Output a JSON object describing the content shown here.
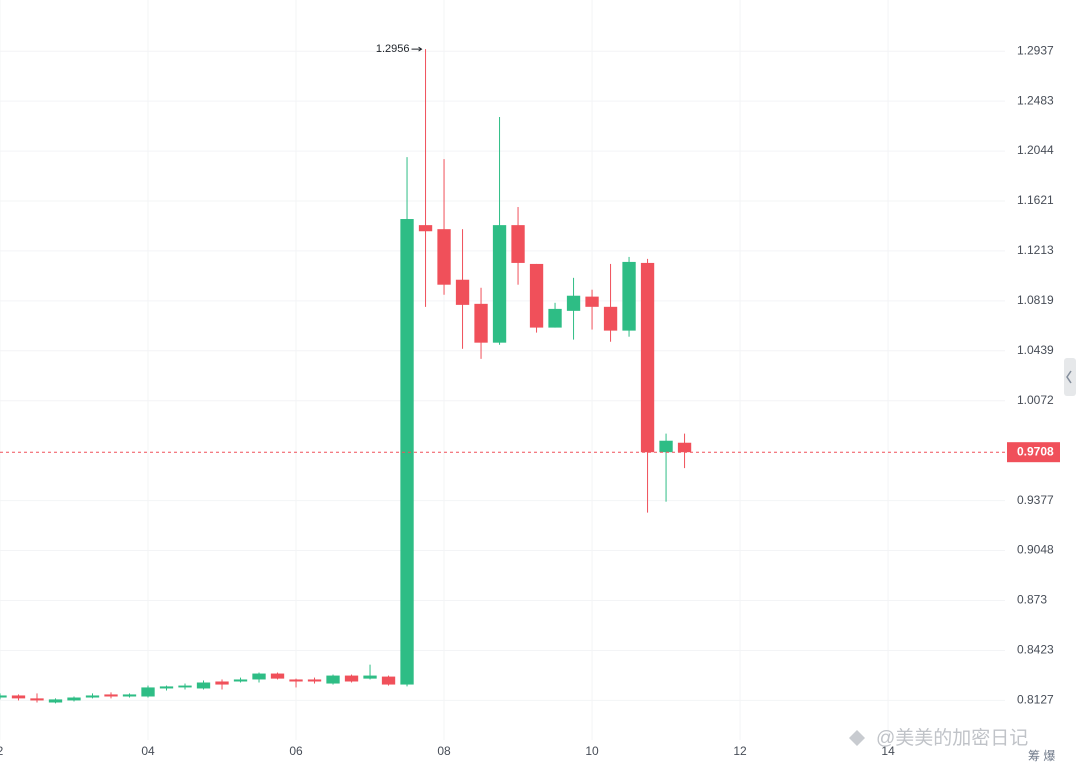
{
  "chart_data": {
    "type": "candlestick",
    "log_scale": true,
    "grid": true,
    "up_color": "#2ebd85",
    "down_color": "#f0505a",
    "x": [
      2,
      2.25,
      2.5,
      2.75,
      3,
      3.25,
      3.5,
      3.75,
      4,
      4.25,
      4.5,
      4.75,
      5,
      5.25,
      5.5,
      5.75,
      6,
      6.25,
      6.5,
      6.75,
      7,
      7.25,
      7.5,
      7.75,
      8,
      8.25,
      8.5,
      8.75,
      9,
      9.25,
      9.5,
      9.75,
      10,
      10.25,
      10.5,
      10.75,
      11,
      11.25
    ],
    "open": [
      0.8144,
      0.8156,
      0.8139,
      0.8115,
      0.8127,
      0.8144,
      0.8162,
      0.815,
      0.815,
      0.8197,
      0.8203,
      0.8197,
      0.8238,
      0.8238,
      0.825,
      0.8285,
      0.825,
      0.825,
      0.8226,
      0.8273,
      0.8255,
      0.8267,
      0.822,
      1.1422,
      1.1389,
      1.0984,
      1.0796,
      1.05,
      1.1422,
      1.1109,
      1.0614,
      1.0742,
      1.0852,
      1.0773,
      1.0591,
      1.1117,
      0.9708,
      0.9774
    ],
    "high": [
      0.8168,
      0.8162,
      0.8168,
      0.8139,
      0.815,
      0.8168,
      0.8174,
      0.8168,
      0.8214,
      0.8214,
      0.8226,
      0.8244,
      0.825,
      0.8261,
      0.8291,
      0.8291,
      0.8255,
      0.8261,
      0.8279,
      0.8279,
      0.8338,
      0.8273,
      1.1992,
      1.2956,
      1.1975,
      1.1389,
      1.0921,
      1.2341,
      1.1571,
      1.1109,
      1.0804,
      1.0999,
      1.0906,
      1.1109,
      1.1165,
      1.1149,
      0.9838,
      0.9838
    ],
    "low": [
      0.8133,
      0.8127,
      0.8115,
      0.811,
      0.8121,
      0.8139,
      0.8139,
      0.8144,
      0.8144,
      0.8185,
      0.8191,
      0.8191,
      0.8191,
      0.8232,
      0.8232,
      0.825,
      0.8203,
      0.8226,
      0.822,
      0.8232,
      0.825,
      0.8214,
      0.8209,
      1.0773,
      1.0867,
      1.0454,
      1.0379,
      1.0484,
      1.0945,
      1.0576,
      1.0614,
      1.0523,
      1.0599,
      1.0507,
      1.0545,
      0.9297,
      0.937,
      0.9598
    ],
    "close": [
      0.8156,
      0.8139,
      0.8127,
      0.8133,
      0.8144,
      0.8156,
      0.815,
      0.8162,
      0.8203,
      0.8209,
      0.8214,
      0.8232,
      0.822,
      0.825,
      0.8285,
      0.8255,
      0.8238,
      0.8238,
      0.8273,
      0.8238,
      0.8273,
      0.822,
      1.1472,
      1.1372,
      1.0945,
      1.0788,
      1.05,
      1.1422,
      1.1117,
      1.0614,
      1.0757,
      1.0859,
      1.0773,
      1.0591,
      1.1125,
      0.9708,
      0.9788,
      0.9708
    ],
    "xlim": [
      2,
      15.58
    ],
    "xticks": [
      {
        "value": 2,
        "label": "2"
      },
      {
        "value": 4,
        "label": "04"
      },
      {
        "value": 6,
        "label": "06"
      },
      {
        "value": 8,
        "label": "08"
      },
      {
        "value": 10,
        "label": "10"
      },
      {
        "value": 12,
        "label": "12"
      },
      {
        "value": 14,
        "label": "14"
      }
    ],
    "ylim": [
      0.79,
      1.342
    ],
    "yticks": [
      1.2937,
      1.2483,
      1.2044,
      1.1621,
      1.1213,
      1.0819,
      1.0439,
      1.0072,
      0.9377,
      0.9048,
      0.873,
      0.8423,
      0.8127
    ],
    "current_price": 0.9708,
    "max_label_index": 23,
    "watermark": "@美美的加密日记",
    "corner_text": "筹 爆"
  }
}
